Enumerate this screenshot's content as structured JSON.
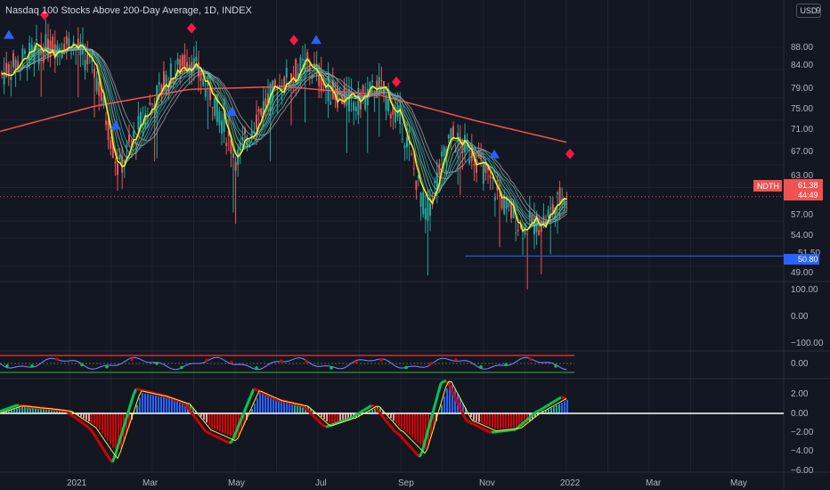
{
  "header": {
    "title": "Nasdaq 100 Stocks Above 200-Day Average, 1D, INDEX",
    "currency": "USD",
    "top_tick_partial": "9"
  },
  "colors": {
    "background": "#131722",
    "grid": "#1e222d",
    "ma200": "#ef5350",
    "yellow": "#ffeb3b",
    "up_candle": "#26a69a",
    "down_candle": "#ef5350",
    "support_line": "#2962ff",
    "ribbon": [
      "#4caf50",
      "#66bb6a",
      "#80cbc4",
      "#4db6ac",
      "#26a69a",
      "#90a4ae",
      "#9e9e9e"
    ],
    "stoch_green": "#00c853",
    "stoch_red": "#d50000"
  },
  "price_axis": {
    "ticks": [
      "88.00",
      "84.00",
      "79.00",
      "75.00",
      "71.00",
      "67.00",
      "63.00",
      "57.00",
      "54.00",
      "49.00"
    ]
  },
  "price_tags": {
    "symbol": "NDTH",
    "last": "61.38",
    "countdown": "44:49",
    "support_partial": "51.50",
    "support": "50.80"
  },
  "pane2_axis": {
    "ticks": [
      "100.00",
      "0.00",
      "−100.00"
    ]
  },
  "pane3_axis": {
    "ticks": [
      "0.00"
    ]
  },
  "pane4_axis": {
    "ticks": [
      "2.00",
      "0.00",
      "−2.00",
      "−4.00",
      "−6.00"
    ]
  },
  "time_axis": {
    "labels": [
      "2021",
      "Mar",
      "May",
      "Jul",
      "Sep",
      "Nov",
      "2022",
      "Mar",
      "May"
    ]
  },
  "chart_data": {
    "type": "line",
    "symbol": "NDTH",
    "x_range": [
      "2021-01",
      "2022-05"
    ],
    "ylim": [
      49,
      90
    ],
    "last_value": 61.38,
    "support_level": 50.8,
    "series": [
      {
        "dates": [
          "2021-01",
          "2021-01",
          "2021-02",
          "2021-02",
          "2021-03",
          "2021-03",
          "2021-04",
          "2021-04",
          "2021-05",
          "2021-05",
          "2021-06",
          "2021-06",
          "2021-07",
          "2021-07",
          "2021-08",
          "2021-08",
          "2021-09",
          "2021-09",
          "2021-10",
          "2021-10",
          "2021-11",
          "2021-11",
          "2021-12",
          "2021-12",
          "2022-01"
        ],
        "values": [
          83,
          86,
          88,
          89,
          84,
          66,
          75,
          82,
          86,
          79,
          68,
          77,
          82,
          85,
          80,
          78,
          81,
          74,
          58,
          72,
          69,
          62,
          56,
          57,
          63
        ]
      },
      {
        "dates": [
          "2021-01",
          "2021-03",
          "2021-05",
          "2021-07",
          "2021-09",
          "2021-11",
          "2022-01"
        ],
        "values": [
          73.0,
          77.5,
          80.5,
          81.0,
          79.5,
          75.0,
          71.0
        ]
      }
    ]
  }
}
